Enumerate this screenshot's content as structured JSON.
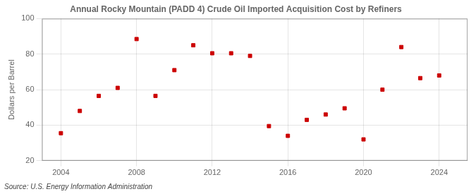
{
  "chart_data": {
    "type": "scatter",
    "title": "Annual Rocky Mountain (PADD 4) Crude Oil Imported Acquisition Cost by Refiners",
    "ylabel": "Dollars per Barrel",
    "annotation": "Source: U.S. Energy Information Administration",
    "x": [
      2004,
      2005,
      2006,
      2007,
      2008,
      2009,
      2010,
      2011,
      2012,
      2013,
      2014,
      2015,
      2016,
      2017,
      2018,
      2019,
      2020,
      2021,
      2022,
      2023,
      2024
    ],
    "values": [
      35.5,
      48.0,
      56.5,
      61.0,
      88.5,
      56.5,
      71.0,
      85.0,
      80.5,
      80.5,
      79.0,
      39.5,
      34.0,
      43.0,
      46.0,
      49.5,
      32.0,
      60.0,
      84.0,
      66.5,
      68.0
    ],
    "color": "#cc0000",
    "marker": "square",
    "xlim": [
      2003.0,
      2025.5
    ],
    "xticks": [
      2004,
      2008,
      2012,
      2016,
      2020,
      2024
    ],
    "ylim": [
      20,
      100
    ],
    "yticks": [
      20,
      40,
      60,
      80,
      100
    ],
    "grid": true
  }
}
